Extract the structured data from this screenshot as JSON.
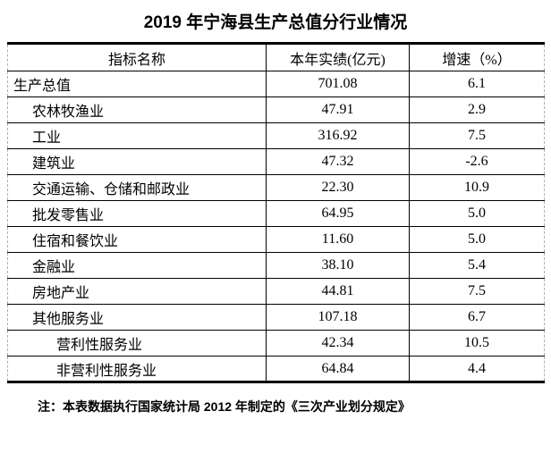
{
  "title": "2019 年宁海县生产总值分行业情况",
  "table": {
    "columns": [
      "指标名称",
      "本年实绩(亿元)",
      "增速（%）"
    ],
    "column_keys": [
      "indicator_name",
      "current_year_value_100m_yuan",
      "growth_rate_pct"
    ],
    "rows": [
      {
        "name": "生产总值",
        "value": "701.08",
        "growth": "6.1",
        "indent": 0
      },
      {
        "name": "农林牧渔业",
        "value": "47.91",
        "growth": "2.9",
        "indent": 1
      },
      {
        "name": "工业",
        "value": "316.92",
        "growth": "7.5",
        "indent": 1
      },
      {
        "name": "建筑业",
        "value": "47.32",
        "growth": "-2.6",
        "indent": 1
      },
      {
        "name": "交通运输、仓储和邮政业",
        "value": "22.30",
        "growth": "10.9",
        "indent": 1
      },
      {
        "name": "批发零售业",
        "value": "64.95",
        "growth": "5.0",
        "indent": 1
      },
      {
        "name": "住宿和餐饮业",
        "value": "11.60",
        "growth": "5.0",
        "indent": 1
      },
      {
        "name": "金融业",
        "value": "38.10",
        "growth": "5.4",
        "indent": 1
      },
      {
        "name": "房地产业",
        "value": "44.81",
        "growth": "7.5",
        "indent": 1
      },
      {
        "name": "其他服务业",
        "value": "107.18",
        "growth": "6.7",
        "indent": 1
      },
      {
        "name": "营利性服务业",
        "value": "42.34",
        "growth": "10.5",
        "indent": 2
      },
      {
        "name": "非营利性服务业",
        "value": "64.84",
        "growth": "4.4",
        "indent": 2
      }
    ]
  },
  "note": "注：本表数据执行国家统计局 2012 年制定的《三次产业划分规定》",
  "colors": {
    "bg": "#ffffff",
    "text": "#000000",
    "grid": "#000000",
    "outer_dashed": "#b0b0b0"
  }
}
